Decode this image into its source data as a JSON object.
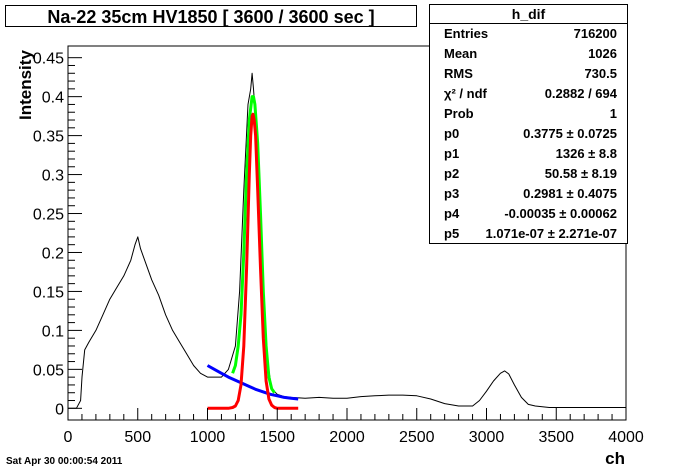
{
  "title": "Na-22 35cm HV1850 [ 3600 / 3600 sec ]",
  "timestamp": "Sat Apr 30 00:00:54 2011",
  "stats": {
    "name": "h_dif",
    "rows": [
      {
        "k": "Entries",
        "v": "716200"
      },
      {
        "k": "Mean",
        "v": "1026"
      },
      {
        "k": "RMS",
        "v": "730.5"
      },
      {
        "k": "χ² / ndf",
        "v": "0.2882 / 694"
      },
      {
        "k": "Prob",
        "v": "1"
      },
      {
        "k": "p0",
        "v": "0.3775 ± 0.0725"
      },
      {
        "k": "p1",
        "v": "1326 ± 8.8"
      },
      {
        "k": "p2",
        "v": "50.58 ± 8.19"
      },
      {
        "k": "p3",
        "v": "0.2981 ± 0.4075"
      },
      {
        "k": "p4",
        "v": "-0.00035 ± 0.00062"
      },
      {
        "k": "p5",
        "v": "1.071e-07 ± 2.271e-07"
      }
    ]
  },
  "chart_data": {
    "type": "line",
    "xlabel": "ch",
    "ylabel": "Intensity",
    "xlim": [
      0,
      4000
    ],
    "ylim": [
      -0.015,
      0.465
    ],
    "xticks": [
      0,
      500,
      1000,
      1500,
      2000,
      2500,
      3000,
      3500,
      4000
    ],
    "yticks": [
      0,
      0.05,
      0.1,
      0.15,
      0.2,
      0.25,
      0.3,
      0.35,
      0.4,
      0.45
    ],
    "ytick_labels": [
      "0",
      "0.05",
      "0.1",
      "0.15",
      "0.2",
      "0.25",
      "0.3",
      "0.35",
      "0.4",
      "0.45"
    ],
    "grid": false,
    "series": [
      {
        "color": "#000000",
        "x": [
          0,
          60,
          90,
          100,
          120,
          150,
          200,
          250,
          300,
          350,
          400,
          450,
          480,
          500,
          520,
          550,
          600,
          650,
          700,
          750,
          800,
          850,
          900,
          950,
          1000,
          1050,
          1100,
          1150,
          1200,
          1230,
          1260,
          1290,
          1310,
          1320,
          1330,
          1350,
          1370,
          1400,
          1430,
          1460,
          1500,
          1550,
          1600,
          1700,
          1800,
          1900,
          2000,
          2100,
          2200,
          2300,
          2400,
          2500,
          2600,
          2700,
          2800,
          2900,
          2950,
          3000,
          3050,
          3100,
          3130,
          3160,
          3200,
          3250,
          3300,
          3350,
          3400,
          3450,
          3500,
          4000
        ],
        "y": [
          0,
          0,
          0.01,
          0.04,
          0.075,
          0.085,
          0.1,
          0.12,
          0.14,
          0.155,
          0.17,
          0.19,
          0.21,
          0.22,
          0.205,
          0.19,
          0.165,
          0.145,
          0.12,
          0.1,
          0.085,
          0.07,
          0.055,
          0.045,
          0.04,
          0.04,
          0.04,
          0.05,
          0.08,
          0.15,
          0.28,
          0.39,
          0.41,
          0.43,
          0.41,
          0.36,
          0.3,
          0.16,
          0.06,
          0.025,
          0.018,
          0.015,
          0.014,
          0.013,
          0.014,
          0.013,
          0.013,
          0.015,
          0.016,
          0.017,
          0.017,
          0.016,
          0.012,
          0.006,
          0.003,
          0.003,
          0.01,
          0.022,
          0.035,
          0.045,
          0.048,
          0.044,
          0.03,
          0.014,
          0.005,
          0.003,
          0.002,
          0.001,
          0.001,
          0.001
        ]
      },
      {
        "color": "#00ff00",
        "x": [
          1180,
          1200,
          1220,
          1240,
          1260,
          1280,
          1300,
          1320,
          1330,
          1340,
          1360,
          1380,
          1400,
          1420,
          1440,
          1460,
          1480
        ],
        "y": [
          0.045,
          0.055,
          0.08,
          0.12,
          0.2,
          0.3,
          0.37,
          0.4,
          0.4,
          0.39,
          0.34,
          0.25,
          0.15,
          0.08,
          0.04,
          0.025,
          0.02
        ]
      },
      {
        "color": "#0000ff",
        "x": [
          1000,
          1050,
          1100,
          1150,
          1200,
          1250,
          1300,
          1350,
          1400,
          1450,
          1500,
          1550,
          1600,
          1650
        ],
        "y": [
          0.055,
          0.05,
          0.045,
          0.04,
          0.036,
          0.032,
          0.028,
          0.024,
          0.021,
          0.018,
          0.016,
          0.014,
          0.013,
          0.012
        ]
      },
      {
        "color": "#ff0000",
        "x": [
          1000,
          1100,
          1150,
          1180,
          1200,
          1220,
          1240,
          1260,
          1280,
          1300,
          1310,
          1320,
          1326,
          1335,
          1345,
          1360,
          1380,
          1400,
          1420,
          1440,
          1460,
          1480,
          1500,
          1550,
          1650
        ],
        "y": [
          0,
          0,
          0,
          0.001,
          0.003,
          0.01,
          0.03,
          0.08,
          0.18,
          0.3,
          0.35,
          0.375,
          0.3775,
          0.37,
          0.35,
          0.28,
          0.18,
          0.09,
          0.035,
          0.012,
          0.004,
          0.001,
          0,
          0,
          0
        ]
      }
    ]
  }
}
